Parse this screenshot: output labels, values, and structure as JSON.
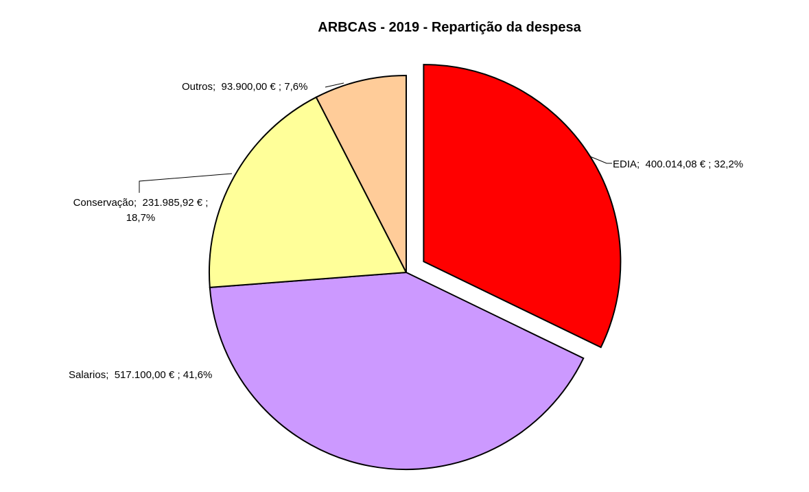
{
  "chart_data": {
    "type": "pie",
    "title": "ARBCAS - 2019 - Repartição da despesa",
    "currency_symbol": "€",
    "slices": [
      {
        "name": "EDIA",
        "value": 400014.08,
        "value_display": "400.014,08 €",
        "pct": 32.2,
        "pct_display": "32,2%",
        "color": "#FF0000",
        "exploded": true
      },
      {
        "name": "Salarios",
        "value": 517100.0,
        "value_display": "517.100,00 €",
        "pct": 41.6,
        "pct_display": "41,6%",
        "color": "#CC99FF",
        "exploded": false
      },
      {
        "name": "Conservação",
        "value": 231985.92,
        "value_display": "231.985,92 €",
        "pct": 18.7,
        "pct_display": "18,7%",
        "color": "#FFFF99",
        "exploded": false
      },
      {
        "name": "Outros",
        "value": 93900.0,
        "value_display": "93.900,00 €",
        "pct": 7.6,
        "pct_display": "7,6%",
        "color": "#FFCC99",
        "exploded": false
      }
    ],
    "layout_hints": {
      "start_angle_deg": 0,
      "direction": "clockwise",
      "legend": "none",
      "border_color": "#000000",
      "background_color": "#FFFFFF",
      "label_format": "name;  value € ; pct%"
    }
  }
}
